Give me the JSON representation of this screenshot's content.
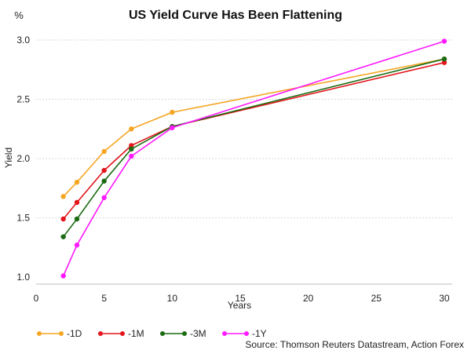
{
  "chart_data": {
    "type": "line",
    "title": "US Yield Curve Has Been Flattening",
    "unit_label": "%",
    "xlabel": "Years",
    "ylabel": "Yield",
    "xlim": [
      0,
      30
    ],
    "ylim": [
      1.0,
      3.0
    ],
    "x_ticks": [
      0,
      5,
      10,
      15,
      20,
      25,
      30
    ],
    "y_ticks": [
      1.0,
      1.5,
      2.0,
      2.5,
      3.0
    ],
    "y_tick_labels": [
      "1.0",
      "1.5",
      "2.0",
      "2.5",
      "3.0"
    ],
    "grid": true,
    "legend_position": "bottom-left",
    "x": [
      2,
      3,
      5,
      7,
      10,
      30
    ],
    "series": [
      {
        "name": "-1D",
        "color": "#f5a623",
        "values": [
          1.68,
          1.8,
          2.06,
          2.25,
          2.39,
          2.84
        ]
      },
      {
        "name": "-1M",
        "color": "#e3161c",
        "values": [
          1.49,
          1.63,
          1.9,
          2.11,
          2.27,
          2.81
        ]
      },
      {
        "name": "-3M",
        "color": "#1b6b12",
        "values": [
          1.34,
          1.49,
          1.81,
          2.08,
          2.27,
          2.84
        ]
      },
      {
        "name": "-1Y",
        "color": "#ff1aff",
        "values": [
          1.01,
          1.27,
          1.67,
          2.02,
          2.26,
          2.99
        ]
      }
    ],
    "source": "Source: Thomson Reuters Datastream, Action Forex"
  }
}
